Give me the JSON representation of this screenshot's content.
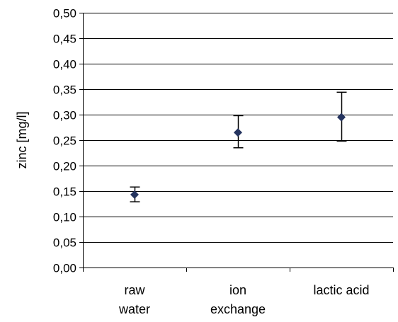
{
  "chart_data": {
    "type": "scatter",
    "categories": [
      [
        "raw",
        "water"
      ],
      [
        "ion",
        "exchange"
      ],
      [
        "lactic acid"
      ]
    ],
    "values": [
      0.143,
      0.265,
      0.295
    ],
    "error_low": [
      0.129,
      0.235,
      0.248
    ],
    "error_high": [
      0.158,
      0.298,
      0.344
    ],
    "ylabel": "zinc [mg/l]",
    "ylim": [
      0,
      0.5
    ],
    "yticks": [
      "0,00",
      "0,05",
      "0,10",
      "0,15",
      "0,20",
      "0,25",
      "0,30",
      "0,35",
      "0,40",
      "0,45",
      "0,50"
    ],
    "grid": true,
    "marker": "diamond",
    "colors": {
      "marker": "#25345f",
      "grid": "#000000",
      "errorbar": "#000000"
    }
  }
}
